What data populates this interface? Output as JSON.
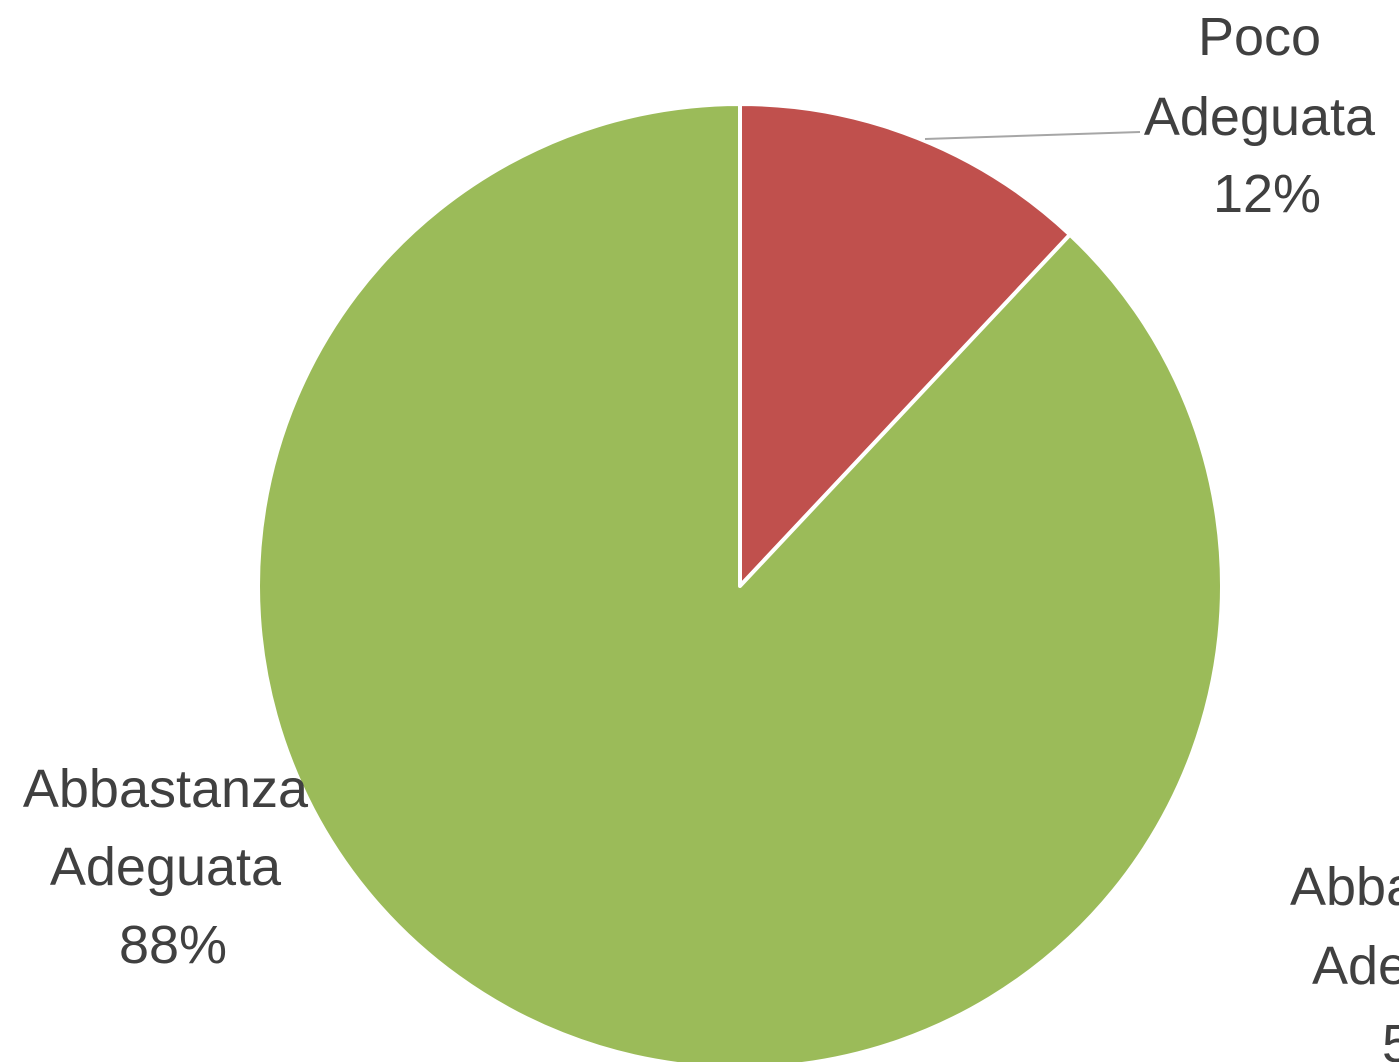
{
  "chart_data": {
    "type": "pie",
    "categories": [
      "Poco Adeguata",
      "Abbastanza Adeguata"
    ],
    "values": [
      12,
      88
    ],
    "value_labels": [
      "12%",
      "88%"
    ],
    "label_lines": [
      [
        "Poco",
        "Adeguata",
        "12%"
      ],
      [
        "Abbastanza",
        "Adeguata",
        "88%"
      ]
    ],
    "partial_label_lines": [
      "Abba",
      "Ade",
      "5"
    ],
    "colors": [
      "#C0504D",
      "#9BBB59"
    ],
    "start_angle": "12 o'clock",
    "direction": "clockwise",
    "legend": "none"
  }
}
